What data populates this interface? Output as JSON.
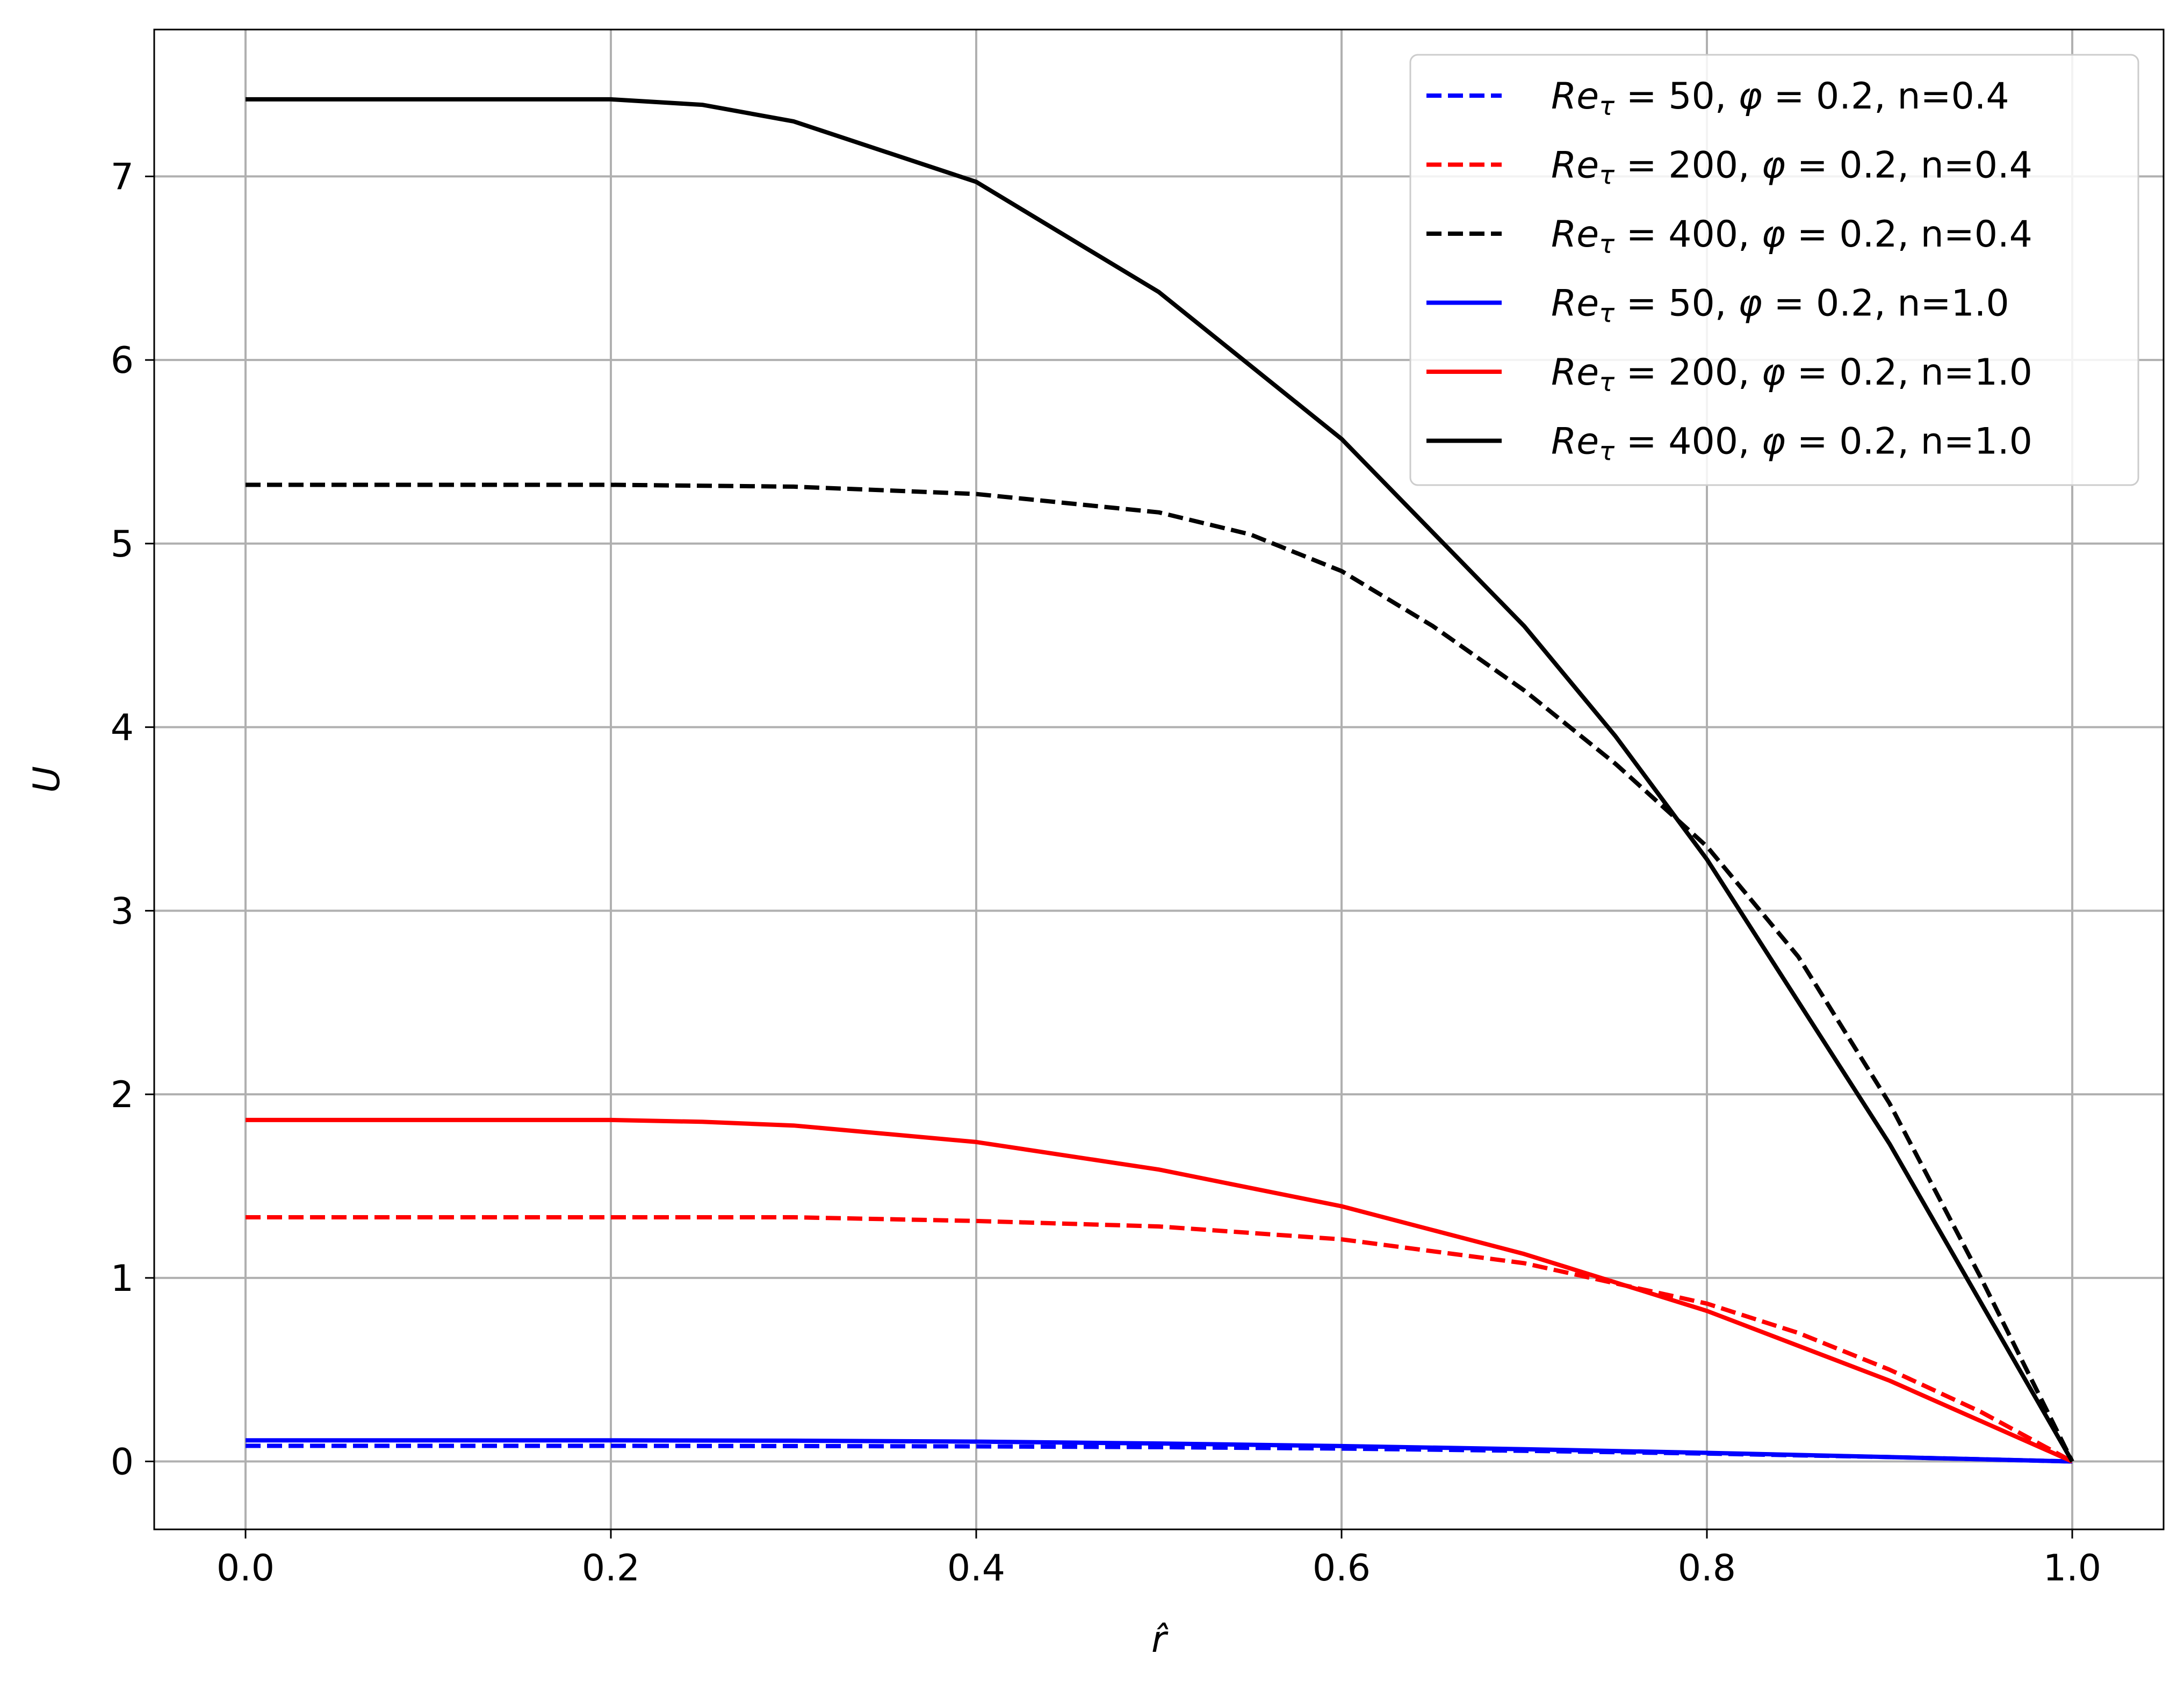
{
  "chart_data": {
    "type": "line",
    "xlabel": "r̂",
    "ylabel": "U",
    "xlim": [
      -0.05,
      1.05
    ],
    "ylim": [
      -0.37,
      7.8
    ],
    "xticks": [
      0.0,
      0.2,
      0.4,
      0.6,
      0.8,
      1.0
    ],
    "xtick_labels": [
      "0.0",
      "0.2",
      "0.4",
      "0.6",
      "0.8",
      "1.0"
    ],
    "yticks": [
      0,
      1,
      2,
      3,
      4,
      5,
      6,
      7
    ],
    "ytick_labels": [
      "0",
      "1",
      "2",
      "3",
      "4",
      "5",
      "6",
      "7"
    ],
    "grid": true,
    "legend_position": "top-right",
    "series": [
      {
        "name": "Re_τ = 50, φ = 0.2, n=0.4",
        "legend_parts": [
          "Re",
          "τ",
          " = 50, ",
          "φ",
          " = 0.2, n=0.4"
        ],
        "color": "#0000ff",
        "style": "dashed",
        "x": [
          0.0,
          0.2,
          0.3,
          0.4,
          0.5,
          0.6,
          0.7,
          0.8,
          0.9,
          1.0
        ],
        "y": [
          0.085,
          0.085,
          0.084,
          0.082,
          0.078,
          0.07,
          0.058,
          0.043,
          0.024,
          0.0
        ]
      },
      {
        "name": "Re_τ = 200, φ = 0.2, n=0.4",
        "legend_parts": [
          "Re",
          "τ",
          " = 200, ",
          "φ",
          " = 0.2, n=0.4"
        ],
        "color": "#ff0000",
        "style": "dashed",
        "x": [
          0.0,
          0.2,
          0.3,
          0.4,
          0.5,
          0.6,
          0.7,
          0.8,
          0.85,
          0.9,
          0.95,
          1.0
        ],
        "y": [
          1.33,
          1.33,
          1.33,
          1.31,
          1.28,
          1.21,
          1.08,
          0.86,
          0.7,
          0.5,
          0.27,
          0.0
        ]
      },
      {
        "name": "Re_τ = 400, φ = 0.2, n=0.4",
        "legend_parts": [
          "Re",
          "τ",
          " = 400, ",
          "φ",
          " = 0.2, n=0.4"
        ],
        "color": "#000000",
        "style": "dashed",
        "x": [
          0.0,
          0.2,
          0.3,
          0.4,
          0.5,
          0.55,
          0.6,
          0.65,
          0.7,
          0.75,
          0.8,
          0.85,
          0.9,
          0.95,
          1.0
        ],
        "y": [
          5.32,
          5.32,
          5.31,
          5.27,
          5.17,
          5.05,
          4.85,
          4.55,
          4.2,
          3.8,
          3.35,
          2.75,
          1.95,
          1.0,
          0.0
        ]
      },
      {
        "name": "Re_τ = 50,  φ = 0.2, n=1.0",
        "legend_parts": [
          "Re",
          "τ",
          " = 50,  ",
          "φ",
          " = 0.2, n=1.0"
        ],
        "color": "#0000ff",
        "style": "solid",
        "x": [
          0.0,
          0.2,
          0.3,
          0.4,
          0.5,
          0.6,
          0.7,
          0.8,
          0.9,
          1.0
        ],
        "y": [
          0.115,
          0.115,
          0.113,
          0.108,
          0.098,
          0.084,
          0.067,
          0.047,
          0.024,
          0.0
        ]
      },
      {
        "name": "Re_τ = 200, φ = 0.2, n=1.0",
        "legend_parts": [
          "Re",
          "τ",
          " = 200, ",
          "φ",
          " = 0.2, n=1.0"
        ],
        "color": "#ff0000",
        "style": "solid",
        "x": [
          0.0,
          0.2,
          0.25,
          0.3,
          0.4,
          0.5,
          0.6,
          0.7,
          0.8,
          0.9,
          1.0
        ],
        "y": [
          1.86,
          1.86,
          1.85,
          1.83,
          1.74,
          1.59,
          1.39,
          1.13,
          0.82,
          0.44,
          0.0
        ]
      },
      {
        "name": "Re_τ = 400, φ = 0.2, n=1.0",
        "legend_parts": [
          "Re",
          "τ",
          " = 400, ",
          "φ",
          " = 0.2, n=1.0"
        ],
        "color": "#000000",
        "style": "solid",
        "x": [
          0.0,
          0.2,
          0.25,
          0.3,
          0.4,
          0.5,
          0.6,
          0.7,
          0.75,
          0.8,
          0.9,
          1.0
        ],
        "y": [
          7.42,
          7.42,
          7.39,
          7.3,
          6.97,
          6.37,
          5.57,
          4.55,
          3.95,
          3.28,
          1.73,
          0.0
        ]
      }
    ]
  }
}
